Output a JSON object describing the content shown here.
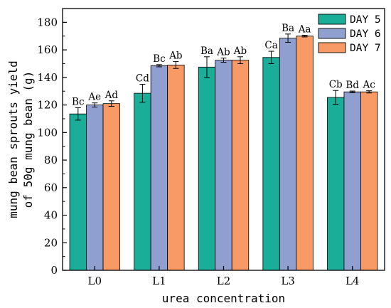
{
  "chart_data": {
    "type": "bar",
    "xlabel": "urea concentration",
    "ylabel_line1": "mung bean sprouts yield",
    "ylabel_line2": "of 50g mung bean (g)",
    "ylim": [
      0,
      190
    ],
    "yticks": [
      0,
      20,
      40,
      60,
      80,
      100,
      120,
      140,
      160,
      180
    ],
    "categories": [
      "L0",
      "L1",
      "L2",
      "L3",
      "L4"
    ],
    "legend_position": "top-right",
    "grid": false,
    "series": [
      {
        "name": "DAY 5",
        "color": "#1aae99",
        "values": [
          113.5,
          128.5,
          147.5,
          154.5,
          125.5
        ],
        "errors": [
          4.5,
          6.5,
          7.5,
          4.5,
          5.0
        ],
        "labels": [
          "Bc",
          "Cd",
          "Ba",
          "Ca",
          "Cb"
        ]
      },
      {
        "name": "DAY 6",
        "color": "#8e9fd0",
        "values": [
          120.0,
          148.5,
          152.5,
          168.5,
          129.5
        ],
        "errors": [
          1.5,
          0.8,
          1.5,
          3.0,
          0.6
        ],
        "labels": [
          "Ae",
          "Bc",
          "Ab",
          "Ba",
          "Bd"
        ]
      },
      {
        "name": "DAY 7",
        "color": "#f79a66",
        "values": [
          121.0,
          149.0,
          152.5,
          170.0,
          129.5
        ],
        "errors": [
          2.0,
          2.5,
          2.5,
          0.6,
          0.8
        ],
        "labels": [
          "Ad",
          "Ab",
          "Ab",
          "Aa",
          "Ac"
        ]
      }
    ]
  }
}
